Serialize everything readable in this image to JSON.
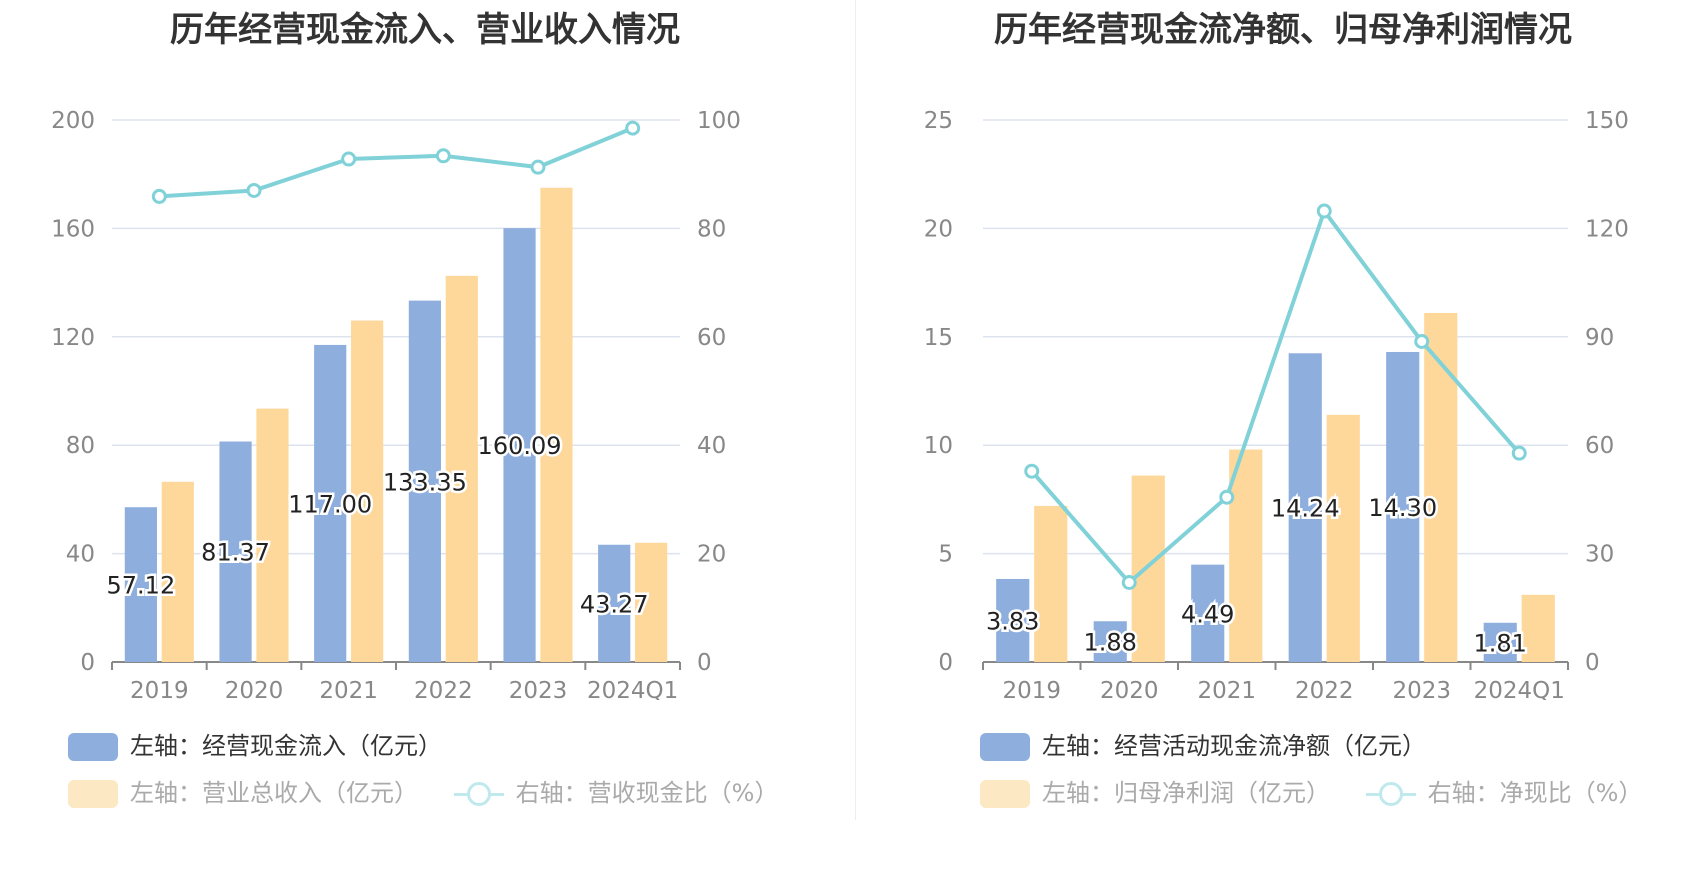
{
  "colors": {
    "blue": "#8eaedd",
    "orange": "#fdd89a",
    "orange_dim": "#fde8c4",
    "teal": "#80d2d8",
    "teal_dim": "#bfe9ec",
    "grid": "#dde3ee",
    "axis": "#888888"
  },
  "charts": [
    {
      "title": "历年经营现金流入、营业收入情况",
      "legend": {
        "bar1": "左轴：经营现金流入（亿元）",
        "bar2": "左轴：营业总收入（亿元）",
        "line": "右轴：营收现金比（%）"
      }
    },
    {
      "title": "历年经营现金流净额、归母净利润情况",
      "legend": {
        "bar1": "左轴：经营活动现金流净额（亿元）",
        "bar2": "左轴：归母净利润（亿元）",
        "line": "右轴：净现比（%）"
      }
    }
  ],
  "chart_data": [
    {
      "type": "bar",
      "title": "历年经营现金流入、营业收入情况",
      "categories": [
        "2019",
        "2020",
        "2021",
        "2022",
        "2023",
        "2024Q1"
      ],
      "series": [
        {
          "name": "左轴：经营现金流入（亿元）",
          "type": "bar",
          "axis": "left",
          "values": [
            57.12,
            81.37,
            117.0,
            133.35,
            160.09,
            43.27
          ],
          "labels": [
            "57.12",
            "81.37",
            "117.00",
            "133.35",
            "160.09",
            "43.27"
          ]
        },
        {
          "name": "左轴：营业总收入（亿元）",
          "type": "bar",
          "axis": "left",
          "values": [
            66.5,
            93.5,
            126.0,
            142.5,
            175.0,
            44.0
          ]
        },
        {
          "name": "右轴：营收现金比（%）",
          "type": "line",
          "axis": "right",
          "values": [
            85.9,
            87.0,
            92.8,
            93.4,
            91.3,
            98.5
          ]
        }
      ],
      "left_axis": {
        "min": 0,
        "max": 200,
        "ticks": [
          0,
          40,
          80,
          120,
          160,
          200
        ]
      },
      "right_axis": {
        "min": 0,
        "max": 100,
        "ticks": [
          0,
          20,
          40,
          60,
          80,
          100
        ]
      },
      "grid": true,
      "legend_position": "bottom-left"
    },
    {
      "type": "bar",
      "title": "历年经营现金流净额、归母净利润情况",
      "categories": [
        "2019",
        "2020",
        "2021",
        "2022",
        "2023",
        "2024Q1"
      ],
      "series": [
        {
          "name": "左轴：经营活动现金流净额（亿元）",
          "type": "bar",
          "axis": "left",
          "values": [
            3.83,
            1.88,
            4.49,
            14.24,
            14.3,
            1.81
          ],
          "labels": [
            "3.83",
            "1.88",
            "4.49",
            "14.24",
            "14.30",
            "1.81"
          ]
        },
        {
          "name": "左轴：归母净利润（亿元）",
          "type": "bar",
          "axis": "left",
          "values": [
            7.2,
            8.6,
            9.8,
            11.4,
            16.1,
            3.1
          ]
        },
        {
          "name": "右轴：净现比（%）",
          "type": "line",
          "axis": "right",
          "values": [
            52.8,
            22.0,
            45.6,
            124.8,
            88.7,
            57.8
          ]
        }
      ],
      "left_axis": {
        "min": 0,
        "max": 25,
        "ticks": [
          0,
          5,
          10,
          15,
          20,
          25
        ]
      },
      "right_axis": {
        "min": 0,
        "max": 150,
        "ticks": [
          0,
          30,
          60,
          90,
          120,
          150
        ]
      },
      "grid": true,
      "legend_position": "bottom-left"
    }
  ]
}
